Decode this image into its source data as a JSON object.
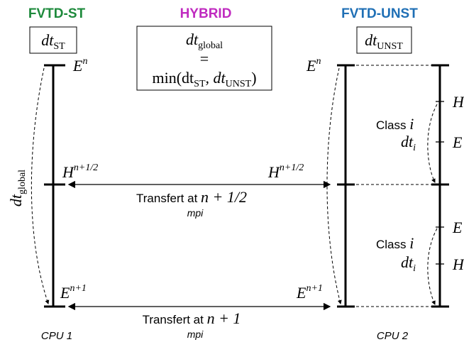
{
  "headers": {
    "left": "FVTD-ST",
    "center": "HYBRID",
    "right": "FVTD-UNST"
  },
  "boxes": {
    "left": {
      "main": "dt",
      "sub": "ST"
    },
    "center": {
      "line1": {
        "main": "dt",
        "sub": "global"
      },
      "line2": "=",
      "line3": {
        "prefix": "min(dt",
        "sub1": "ST",
        "mid": ", dt",
        "sub2": "UNST",
        "suffix": ")"
      }
    },
    "right": {
      "main": "dt",
      "sub": "UNST"
    }
  },
  "cpu1": {
    "e_n": {
      "base": "E",
      "sup": "n"
    },
    "h_half": {
      "base": "H",
      "sup": "n+1/2"
    },
    "e_next": {
      "base": "E",
      "sup": "n+1"
    },
    "dt_global": {
      "main": "dt",
      "sub": "global"
    },
    "label": "CPU 1"
  },
  "cpu2": {
    "e_n": {
      "base": "E",
      "sup": "n"
    },
    "h_half": {
      "base": "H",
      "sup": "n+1/2"
    },
    "e_next": {
      "base": "E",
      "sup": "n+1"
    },
    "label": "CPU 2"
  },
  "transfers": [
    {
      "text": "Transfert at ",
      "math": "n + 1/2",
      "sub": "mpi"
    },
    {
      "text": "Transfert at ",
      "math": "n + 1",
      "sub": "mpi"
    }
  ],
  "classes": [
    {
      "label": "Class ",
      "var": "i",
      "dt": {
        "main": "dt",
        "sub": "i"
      },
      "ticks": [
        "H",
        "E"
      ]
    },
    {
      "label": "Class ",
      "var": "i",
      "dt": {
        "main": "dt",
        "sub": "i"
      },
      "ticks": [
        "E",
        "H"
      ]
    }
  ]
}
